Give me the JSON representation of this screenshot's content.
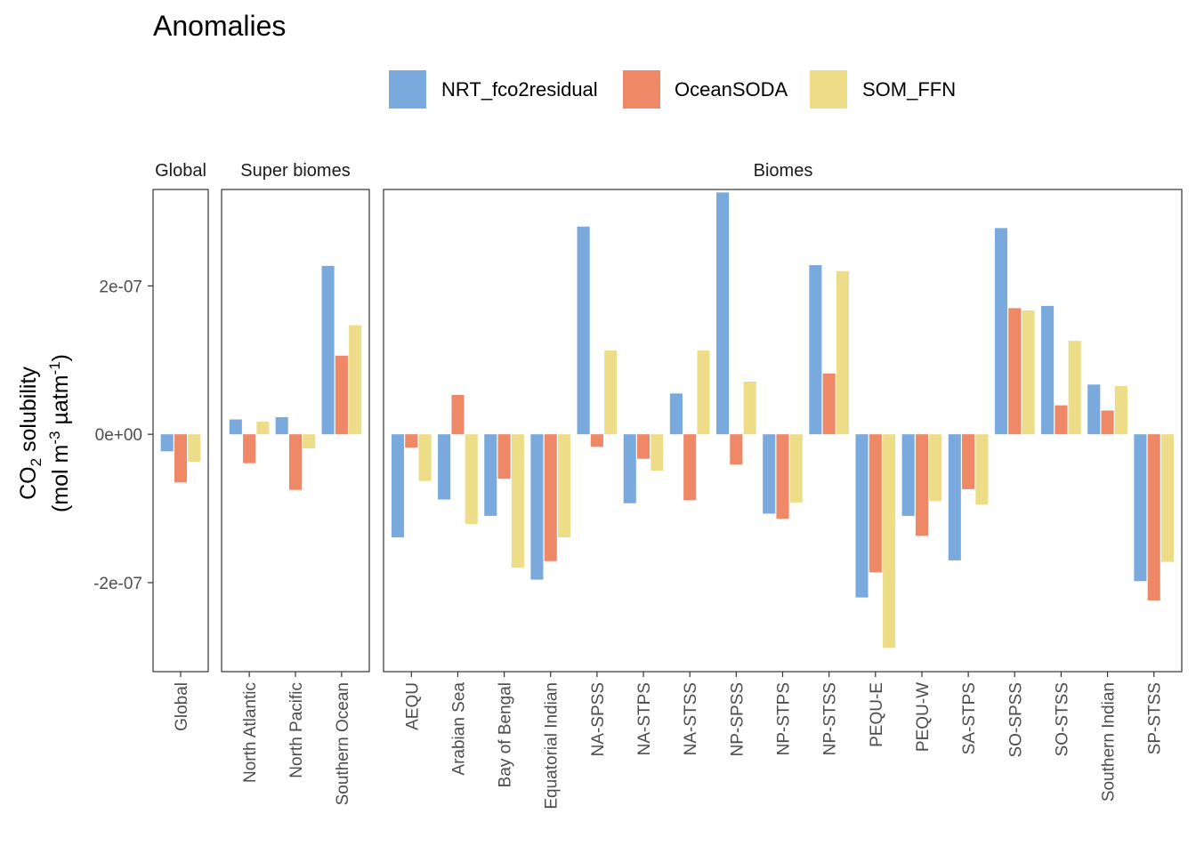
{
  "chart_data": {
    "type": "bar",
    "title": "Anomalies",
    "ylabel_line1": "CO",
    "ylabel_sub": "2",
    "ylabel_line1_rest": " solubility",
    "ylabel_line2_pre": "(mol m",
    "ylabel_sup1": "-3",
    "ylabel_line2_mid": " µatm",
    "ylabel_sup2": "-1",
    "ylabel_line2_post": ")",
    "ylim": [
      -3.2e-07,
      3.3e-07
    ],
    "yticks": [
      {
        "value": 2e-07,
        "label": "2e-07"
      },
      {
        "value": 0,
        "label": "0e+00"
      },
      {
        "value": -2e-07,
        "label": "-2e-07"
      }
    ],
    "legend": {
      "position": "top",
      "entries": [
        {
          "name": "NRT_fco2residual",
          "color": "#7aaadd"
        },
        {
          "name": "OceanSODA",
          "color": "#ee8866"
        },
        {
          "name": "SOM_FFN",
          "color": "#eedd88"
        }
      ]
    },
    "panels": [
      {
        "name": "Global",
        "categories": [
          "Global"
        ],
        "series": [
          {
            "name": "NRT_fco2residual",
            "values": [
              -2.3e-08
            ]
          },
          {
            "name": "OceanSODA",
            "values": [
              -6.5e-08
            ]
          },
          {
            "name": "SOM_FFN",
            "values": [
              -3.7e-08
            ]
          }
        ]
      },
      {
        "name": "Super biomes",
        "categories": [
          "North Atlantic",
          "North Pacific",
          "Southern Ocean"
        ],
        "series": [
          {
            "name": "NRT_fco2residual",
            "values": [
              2e-08,
              2.3e-08,
              2.27e-07
            ]
          },
          {
            "name": "OceanSODA",
            "values": [
              -3.9e-08,
              -7.5e-08,
              1.06e-07
            ]
          },
          {
            "name": "SOM_FFN",
            "values": [
              1.7e-08,
              -1.9e-08,
              1.47e-07
            ]
          }
        ]
      },
      {
        "name": "Biomes",
        "categories": [
          "AEQU",
          "Arabian Sea",
          "Bay of Bengal",
          "Equatorial Indian",
          "NA-SPSS",
          "NA-STPS",
          "NA-STSS",
          "NP-SPSS",
          "NP-STPS",
          "NP-STSS",
          "PEQU-E",
          "PEQU-W",
          "SA-STPS",
          "SO-SPSS",
          "SO-STSS",
          "Southern Indian",
          "SP-STSS"
        ],
        "series": [
          {
            "name": "NRT_fco2residual",
            "values": [
              -1.39e-07,
              -8.8e-08,
              -1.1e-07,
              -1.96e-07,
              2.8e-07,
              -9.3e-08,
              5.5e-08,
              3.26e-07,
              -1.07e-07,
              2.28e-07,
              -2.2e-07,
              -1.1e-07,
              -1.7e-07,
              2.78e-07,
              1.73e-07,
              6.7e-08,
              -1.98e-07
            ]
          },
          {
            "name": "OceanSODA",
            "values": [
              -1.8e-08,
              5.3e-08,
              -6e-08,
              -1.71e-07,
              -1.7e-08,
              -3.3e-08,
              -8.9e-08,
              -4.1e-08,
              -1.14e-07,
              8.2e-08,
              -1.86e-07,
              -1.37e-07,
              -7.4e-08,
              1.7e-07,
              3.9e-08,
              3.2e-08,
              -2.24e-07
            ]
          },
          {
            "name": "SOM_FFN",
            "values": [
              -6.3e-08,
              -1.21e-07,
              -1.8e-07,
              -1.39e-07,
              1.13e-07,
              -4.9e-08,
              1.13e-07,
              7.1e-08,
              -9.2e-08,
              2.2e-07,
              -2.88e-07,
              -9e-08,
              -9.5e-08,
              1.67e-07,
              1.26e-07,
              6.5e-08,
              -1.72e-07
            ]
          }
        ]
      }
    ]
  }
}
